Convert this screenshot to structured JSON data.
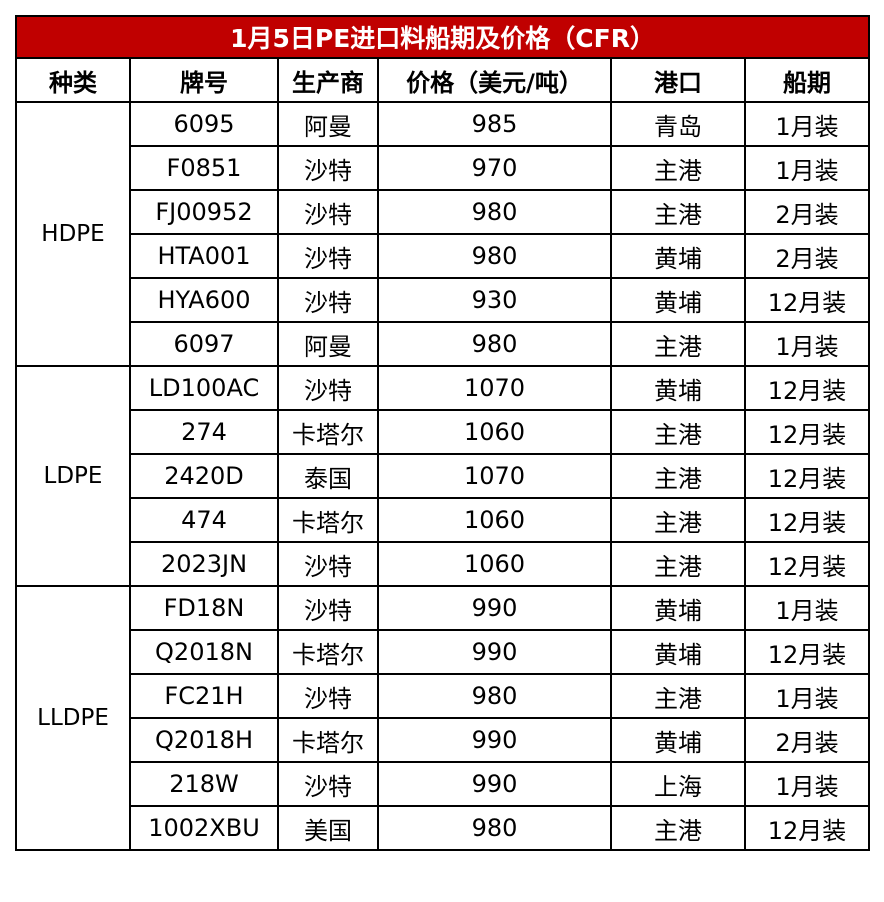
{
  "title": "1月5日PE进口料船期及价格（CFR）",
  "headers": [
    "种类",
    "牌号",
    "生产商",
    "价格（美元/吨）",
    "港口",
    "船期"
  ],
  "groups": [
    {
      "category": "HDPE",
      "rows": [
        {
          "grade": "6095",
          "producer": "阿曼",
          "price": "985",
          "port": "青岛",
          "shipment": "1月装"
        },
        {
          "grade": "F0851",
          "producer": "沙特",
          "price": "970",
          "port": "主港",
          "shipment": "1月装"
        },
        {
          "grade": "FJ00952",
          "producer": "沙特",
          "price": "980",
          "port": "主港",
          "shipment": "2月装"
        },
        {
          "grade": "HTA001",
          "producer": "沙特",
          "price": "980",
          "port": "黄埔",
          "shipment": "2月装"
        },
        {
          "grade": "HYA600",
          "producer": "沙特",
          "price": "930",
          "port": "黄埔",
          "shipment": "12月装"
        },
        {
          "grade": "6097",
          "producer": "阿曼",
          "price": "980",
          "port": "主港",
          "shipment": "1月装"
        }
      ]
    },
    {
      "category": "LDPE",
      "rows": [
        {
          "grade": "LD100AC",
          "producer": "沙特",
          "price": "1070",
          "port": "黄埔",
          "shipment": "12月装"
        },
        {
          "grade": "274",
          "producer": "卡塔尔",
          "price": "1060",
          "port": "主港",
          "shipment": "12月装"
        },
        {
          "grade": "2420D",
          "producer": "泰国",
          "price": "1070",
          "port": "主港",
          "shipment": "12月装"
        },
        {
          "grade": "474",
          "producer": "卡塔尔",
          "price": "1060",
          "port": "主港",
          "shipment": "12月装"
        },
        {
          "grade": "2023JN",
          "producer": "沙特",
          "price": "1060",
          "port": "主港",
          "shipment": "12月装"
        }
      ]
    },
    {
      "category": "LLDPE",
      "rows": [
        {
          "grade": "FD18N",
          "producer": "沙特",
          "price": "990",
          "port": "黄埔",
          "shipment": "1月装"
        },
        {
          "grade": "Q2018N",
          "producer": "卡塔尔",
          "price": "990",
          "port": "黄埔",
          "shipment": "12月装"
        },
        {
          "grade": "FC21H",
          "producer": "沙特",
          "price": "980",
          "port": "主港",
          "shipment": "1月装"
        },
        {
          "grade": "Q2018H",
          "producer": "卡塔尔",
          "price": "990",
          "port": "黄埔",
          "shipment": "2月装"
        },
        {
          "grade": "218W",
          "producer": "沙特",
          "price": "990",
          "port": "上海",
          "shipment": "1月装"
        },
        {
          "grade": "1002XBU",
          "producer": "美国",
          "price": "980",
          "port": "主港",
          "shipment": "12月装"
        }
      ]
    }
  ]
}
